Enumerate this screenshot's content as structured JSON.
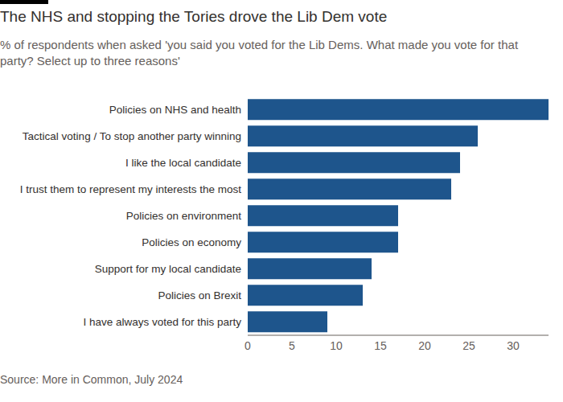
{
  "chart_data": {
    "type": "bar",
    "orientation": "horizontal",
    "title": "The NHS and stopping the Tories drove the Lib Dem vote",
    "subtitle": "% of respondents when asked 'you said you voted for the Lib Dems. What made you vote for that party? Select up to three reasons'",
    "source": "Source: More in Common, July 2024",
    "categories": [
      "Policies on NHS and health",
      "Tactical voting / To stop another party winning",
      "I like the local candidate",
      "I trust them to represent my interests the most",
      "Policies on environment",
      "Policies on economy",
      "Support for my local candidate",
      "Policies on Brexit",
      "I have always voted for this party"
    ],
    "values": [
      34,
      26,
      24,
      23,
      17,
      17,
      14,
      13,
      9
    ],
    "color": "#1e558c",
    "xlim": [
      0,
      34
    ],
    "xticks": [
      0,
      5,
      10,
      15,
      20,
      25,
      30
    ],
    "grid": false
  }
}
